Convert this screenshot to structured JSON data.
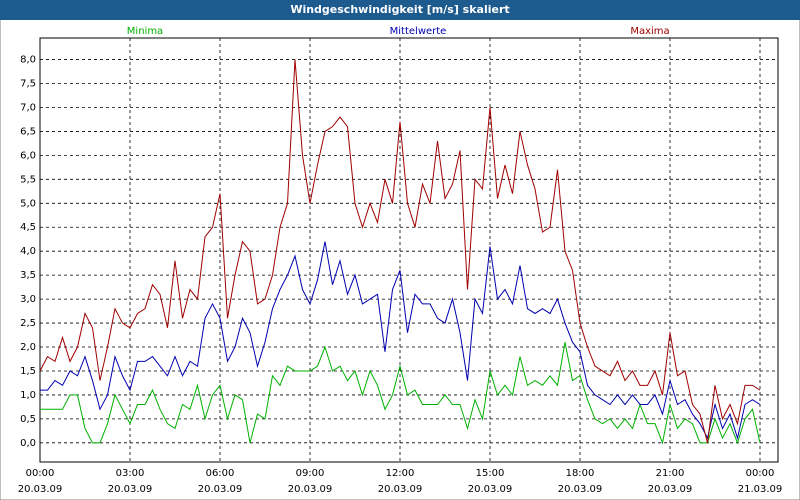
{
  "chart_data": {
    "type": "line",
    "title": "Windgeschwindigkeit [m/s] skaliert",
    "x": [
      0,
      0.25,
      0.5,
      0.75,
      1,
      1.25,
      1.5,
      1.75,
      2,
      2.25,
      2.5,
      2.75,
      3,
      3.25,
      3.5,
      3.75,
      4,
      4.25,
      4.5,
      4.75,
      5,
      5.25,
      5.5,
      5.75,
      6,
      6.25,
      6.5,
      6.75,
      7,
      7.25,
      7.5,
      7.75,
      8,
      8.25,
      8.5,
      8.75,
      9,
      9.25,
      9.5,
      9.75,
      10,
      10.25,
      10.5,
      10.75,
      11,
      11.25,
      11.5,
      11.75,
      12,
      12.25,
      12.5,
      12.75,
      13,
      13.25,
      13.5,
      13.75,
      14,
      14.25,
      14.5,
      14.75,
      15,
      15.25,
      15.5,
      15.75,
      16,
      16.25,
      16.5,
      16.75,
      17,
      17.25,
      17.5,
      17.75,
      18,
      18.25,
      18.5,
      18.75,
      19,
      19.25,
      19.5,
      19.75,
      20,
      20.25,
      20.5,
      20.75,
      21,
      21.25,
      21.5,
      21.75,
      22,
      22.25,
      22.5,
      22.75,
      23,
      23.25,
      23.5,
      23.75,
      24
    ],
    "series": [
      {
        "name": "Minima",
        "color": "#00b000",
        "values": [
          0.7,
          0.7,
          0.7,
          0.7,
          1.0,
          1.0,
          0.3,
          0.0,
          0.0,
          0.4,
          1.0,
          0.7,
          0.4,
          0.8,
          0.8,
          1.1,
          0.7,
          0.4,
          0.3,
          0.8,
          0.7,
          1.2,
          0.5,
          1.0,
          1.2,
          0.5,
          1.0,
          0.9,
          0.0,
          0.6,
          0.5,
          1.4,
          1.2,
          1.6,
          1.5,
          1.5,
          1.5,
          1.6,
          2.0,
          1.5,
          1.6,
          1.3,
          1.5,
          1.0,
          1.5,
          1.2,
          0.7,
          1.0,
          1.6,
          1.0,
          1.1,
          0.8,
          0.8,
          0.8,
          1.0,
          0.8,
          0.8,
          0.3,
          0.9,
          0.5,
          1.5,
          1.0,
          1.2,
          1.0,
          1.8,
          1.2,
          1.3,
          1.2,
          1.4,
          1.2,
          2.1,
          1.3,
          1.4,
          0.9,
          0.5,
          0.4,
          0.5,
          0.3,
          0.5,
          0.3,
          0.8,
          0.4,
          0.4,
          0.0,
          0.8,
          0.3,
          0.5,
          0.4,
          0.0,
          0.0,
          0.5,
          0.1,
          0.4,
          0.0,
          0.5,
          0.7,
          0.0
        ]
      },
      {
        "name": "Mittelwerte",
        "color": "#0000b0",
        "values": [
          1.1,
          1.1,
          1.3,
          1.2,
          1.5,
          1.4,
          1.8,
          1.3,
          0.7,
          1.0,
          1.8,
          1.4,
          1.1,
          1.7,
          1.7,
          1.8,
          1.6,
          1.4,
          1.8,
          1.4,
          1.7,
          1.6,
          2.6,
          2.9,
          2.6,
          1.7,
          2.0,
          2.6,
          2.3,
          1.6,
          2.1,
          2.8,
          3.2,
          3.5,
          3.9,
          3.2,
          2.9,
          3.4,
          4.2,
          3.3,
          3.8,
          3.1,
          3.5,
          2.9,
          3.0,
          3.1,
          1.9,
          3.2,
          3.6,
          2.3,
          3.1,
          2.9,
          2.9,
          2.6,
          2.5,
          3.0,
          2.3,
          1.3,
          3.0,
          2.7,
          4.1,
          3.0,
          3.2,
          2.9,
          3.7,
          2.8,
          2.7,
          2.8,
          2.7,
          3.0,
          2.5,
          2.1,
          1.9,
          1.2,
          1.0,
          0.9,
          0.8,
          1.0,
          0.8,
          1.0,
          0.8,
          0.8,
          1.0,
          0.6,
          1.3,
          0.8,
          0.9,
          0.6,
          0.4,
          0.1,
          0.8,
          0.3,
          0.6,
          0.1,
          0.8,
          0.9,
          0.8
        ]
      },
      {
        "name": "Maxima",
        "color": "#a00000",
        "values": [
          1.5,
          1.8,
          1.7,
          2.2,
          1.7,
          2.0,
          2.7,
          2.4,
          1.3,
          2.0,
          2.8,
          2.5,
          2.4,
          2.7,
          2.8,
          3.3,
          3.1,
          2.4,
          3.8,
          2.6,
          3.2,
          3.0,
          4.3,
          4.5,
          5.2,
          2.6,
          3.5,
          4.2,
          4.0,
          2.9,
          3.0,
          3.5,
          4.5,
          5.0,
          8.0,
          6.0,
          5.0,
          5.8,
          6.5,
          6.6,
          6.8,
          6.6,
          5.0,
          4.5,
          5.0,
          4.6,
          5.5,
          5.0,
          6.7,
          5.0,
          4.5,
          5.4,
          5.0,
          6.3,
          5.1,
          5.4,
          6.1,
          3.2,
          5.5,
          5.3,
          7.0,
          5.1,
          5.8,
          5.2,
          6.5,
          5.8,
          5.3,
          4.4,
          4.5,
          5.7,
          4.0,
          3.6,
          2.5,
          2.0,
          1.6,
          1.5,
          1.4,
          1.7,
          1.3,
          1.5,
          1.2,
          1.2,
          1.5,
          1.0,
          2.3,
          1.4,
          1.5,
          0.8,
          0.6,
          0.0,
          1.2,
          0.5,
          0.8,
          0.4,
          1.2,
          1.2,
          1.1
        ]
      }
    ],
    "xlim": [
      0,
      24.6
    ],
    "xticks": [
      {
        "value": 0,
        "label": "00:00"
      },
      {
        "value": 3,
        "label": "03:00"
      },
      {
        "value": 6,
        "label": "06:00"
      },
      {
        "value": 9,
        "label": "09:00"
      },
      {
        "value": 12,
        "label": "12:00"
      },
      {
        "value": 15,
        "label": "15:00"
      },
      {
        "value": 18,
        "label": "18:00"
      },
      {
        "value": 21,
        "label": "21:00"
      },
      {
        "value": 24,
        "label": "00:00"
      }
    ],
    "xtick_dates": [
      "20.03.09",
      "20.03.09",
      "20.03.09",
      "20.03.09",
      "20.03.09",
      "20.03.09",
      "20.03.09",
      "20.03.09",
      "21.03.09"
    ],
    "ylim": [
      -0.4,
      8.45
    ],
    "yticks": [
      {
        "value": 0,
        "label": "0,0"
      },
      {
        "value": 0.5,
        "label": "0,5"
      },
      {
        "value": 1,
        "label": "1,0"
      },
      {
        "value": 1.5,
        "label": "1,5"
      },
      {
        "value": 2,
        "label": "2,0"
      },
      {
        "value": 2.5,
        "label": "2,5"
      },
      {
        "value": 3,
        "label": "3,0"
      },
      {
        "value": 3.5,
        "label": "3,5"
      },
      {
        "value": 4,
        "label": "4,0"
      },
      {
        "value": 4.5,
        "label": "4,5"
      },
      {
        "value": 5,
        "label": "5,0"
      },
      {
        "value": 5.5,
        "label": "5,5"
      },
      {
        "value": 6,
        "label": "6,0"
      },
      {
        "value": 6.5,
        "label": "6,5"
      },
      {
        "value": 7,
        "label": "7,0"
      },
      {
        "value": 7.5,
        "label": "7,5"
      },
      {
        "value": 8,
        "label": "8,0"
      }
    ],
    "grid": true
  }
}
